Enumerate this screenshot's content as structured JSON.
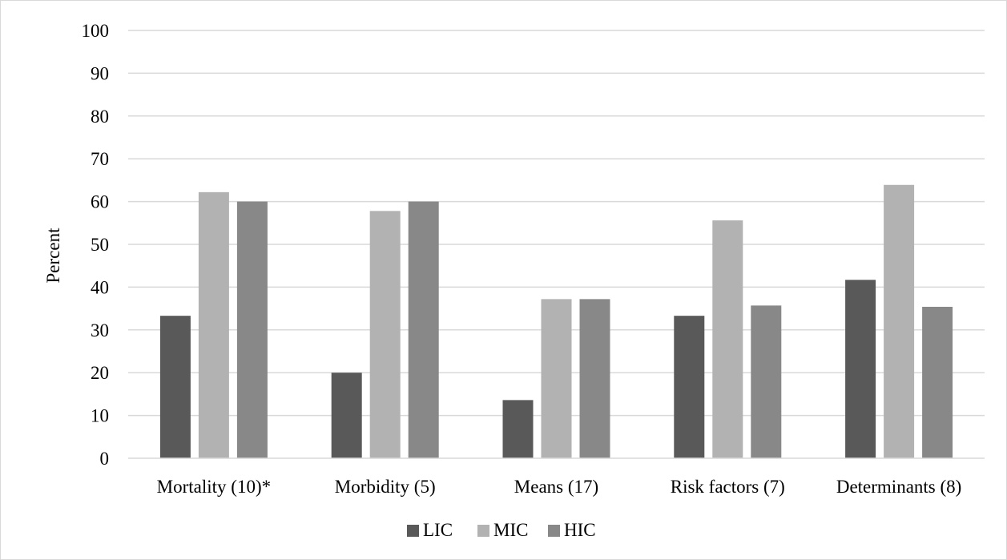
{
  "chart_data": {
    "type": "bar",
    "title": "",
    "xlabel": "",
    "ylabel": "Percent",
    "ylim": [
      0,
      100
    ],
    "yticks": [
      0,
      10,
      20,
      30,
      40,
      50,
      60,
      70,
      80,
      90,
      100
    ],
    "categories": [
      "Mortality (10)*",
      "Morbidity (5)",
      "Means (17)",
      "Risk factors (7)",
      "Determinants (8)"
    ],
    "series": [
      {
        "name": "LIC",
        "color": "#595959",
        "values": [
          33.3,
          20.0,
          13.6,
          33.3,
          41.7
        ]
      },
      {
        "name": "MIC",
        "color": "#b2b2b2",
        "values": [
          62.2,
          57.8,
          37.2,
          55.6,
          63.9
        ]
      },
      {
        "name": "HIC",
        "color": "#888888",
        "values": [
          60.0,
          60.0,
          37.2,
          35.7,
          35.4
        ]
      }
    ],
    "grid": true,
    "gridline_color": "#d9d9d9",
    "legend_position": "bottom"
  }
}
